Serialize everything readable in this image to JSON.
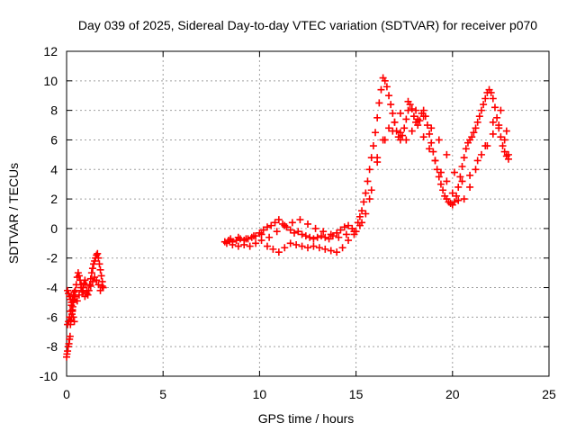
{
  "chart_data": {
    "type": "scatter",
    "title": "Day 039 of 2025, Sidereal Day-to-day VTEC variation (SDTVAR) for receiver p070",
    "xlabel": "GPS time / hours",
    "ylabel": "SDTVAR / TECUs",
    "xlim": [
      0,
      25
    ],
    "ylim": [
      -10,
      12
    ],
    "xticks": [
      "0",
      "5",
      "10",
      "15",
      "20",
      "25"
    ],
    "yticks": [
      "-10",
      "-8",
      "-6",
      "-4",
      "-2",
      "0",
      "2",
      "4",
      "6",
      "8",
      "10",
      "12"
    ],
    "grid": true,
    "marker": "plus",
    "color": "#ff0000",
    "series": [
      {
        "x": [
          0.0,
          0.02,
          0.05,
          0.08,
          0.12,
          0.15,
          0.18,
          0.2,
          0.22,
          0.25,
          0.28,
          0.3,
          0.32,
          0.35,
          0.38,
          0.42,
          0.45,
          0.5,
          0.55,
          0.6,
          0.65,
          0.7,
          0.75,
          0.8,
          0.85,
          0.9,
          0.95,
          1.0,
          1.05,
          1.1,
          1.15,
          1.2,
          1.25,
          1.3,
          1.35,
          1.4,
          1.45,
          1.5,
          1.55,
          1.6,
          1.65,
          1.7,
          1.75,
          1.8,
          1.85,
          1.9,
          0.05,
          0.1,
          0.15,
          0.2,
          0.25,
          0.3,
          0.35,
          0.4,
          0.45,
          0.55,
          0.65,
          0.75,
          0.85,
          0.95,
          1.05,
          1.15,
          1.25,
          1.35,
          1.45,
          1.55,
          1.65,
          1.75,
          1.85,
          0.05,
          0.1,
          0.15,
          0.2,
          0.25,
          0.3,
          0.35,
          0.4
        ],
        "y": [
          -8.7,
          -8.5,
          -8.3,
          -8.0,
          -7.8,
          -7.5,
          -7.3,
          -6.5,
          -6.2,
          -6.0,
          -5.8,
          -5.6,
          -5.3,
          -5.0,
          -4.8,
          -4.5,
          -4.2,
          -3.8,
          -3.3,
          -3.0,
          -3.2,
          -3.5,
          -3.8,
          -4.2,
          -4.0,
          -3.7,
          -3.5,
          -3.8,
          -4.2,
          -4.5,
          -4.2,
          -3.8,
          -3.4,
          -3.0,
          -2.7,
          -2.4,
          -2.2,
          -2.0,
          -1.8,
          -1.7,
          -2.0,
          -2.4,
          -2.8,
          -3.2,
          -3.6,
          -4.0,
          -6.5,
          -6.3,
          -6.0,
          -5.6,
          -5.2,
          -4.8,
          -4.5,
          -4.3,
          -4.6,
          -4.9,
          -4.5,
          -4.0,
          -4.3,
          -4.6,
          -4.4,
          -4.2,
          -3.9,
          -3.6,
          -3.3,
          -3.5,
          -3.8,
          -4.2,
          -3.9,
          -4.2,
          -4.4,
          -4.6,
          -4.8,
          -5.0,
          -5.5,
          -6.0,
          -6.3
        ]
      },
      {
        "x": [
          8.2,
          8.4,
          8.6,
          8.8,
          9.0,
          9.2,
          9.4,
          9.6,
          9.8,
          10.0,
          10.2,
          10.4,
          10.6,
          10.8,
          11.0,
          11.2,
          11.4,
          11.6,
          11.8,
          12.0,
          12.2,
          12.4,
          12.6,
          12.8,
          13.0,
          13.2,
          13.4,
          13.6,
          13.8,
          14.0,
          14.2,
          14.4,
          14.6,
          14.8,
          15.0,
          15.1,
          15.2,
          15.3,
          15.4,
          15.5,
          15.6,
          15.7,
          15.8,
          15.9,
          16.0,
          16.1,
          16.2,
          16.3,
          16.4,
          16.5,
          16.6,
          16.7,
          16.8,
          16.9,
          17.0,
          17.1,
          17.2,
          17.3,
          17.4,
          17.5,
          17.6,
          17.7,
          17.8,
          17.9,
          18.0,
          18.1,
          18.2,
          18.3,
          18.4,
          18.5,
          18.6,
          18.7,
          18.8,
          18.9,
          19.0,
          19.1,
          19.2,
          19.3,
          19.4,
          19.5,
          19.6,
          19.7,
          19.8,
          19.9,
          20.0,
          20.1,
          20.2,
          20.3,
          20.4,
          20.5,
          20.6,
          20.7,
          20.8,
          20.9,
          21.0,
          21.1,
          21.2,
          21.3,
          21.4,
          21.5,
          21.6,
          21.7,
          21.8,
          21.9,
          22.0,
          22.1,
          22.2,
          22.3,
          22.4,
          22.5,
          22.6,
          22.7,
          22.8,
          22.9
        ],
        "y": [
          -0.9,
          -0.8,
          -0.9,
          -0.8,
          -0.7,
          -0.8,
          -0.7,
          -0.6,
          -0.5,
          -0.3,
          -0.1,
          0.1,
          0.2,
          0.4,
          0.6,
          0.3,
          0.1,
          -0.1,
          -0.3,
          -0.2,
          -0.4,
          -0.5,
          -0.6,
          -0.7,
          -0.6,
          -0.5,
          -0.6,
          -0.7,
          -0.5,
          -0.3,
          -0.1,
          0.1,
          0.2,
          0.0,
          -0.2,
          0.4,
          0.8,
          1.2,
          1.8,
          2.4,
          3.2,
          4.0,
          4.8,
          5.6,
          6.5,
          7.5,
          8.5,
          9.4,
          10.2,
          10.0,
          9.6,
          9.0,
          8.4,
          7.8,
          7.2,
          6.6,
          6.2,
          6.0,
          6.3,
          6.8,
          7.4,
          8.0,
          8.4,
          8.1,
          7.6,
          7.2,
          7.0,
          7.3,
          7.8,
          8.0,
          7.6,
          7.0,
          6.4,
          5.8,
          5.2,
          4.6,
          4.0,
          3.5,
          3.0,
          2.6,
          2.2,
          2.0,
          1.8,
          1.7,
          1.6,
          1.8,
          2.2,
          2.8,
          3.5,
          4.2,
          4.8,
          5.4,
          5.8,
          6.0,
          6.2,
          6.5,
          6.8,
          7.2,
          7.6,
          8.0,
          8.4,
          8.8,
          9.2,
          9.4,
          9.2,
          8.8,
          8.2,
          7.5,
          6.8,
          6.2,
          5.6,
          5.2,
          4.9,
          4.7
        ]
      },
      {
        "x": [
          8.3,
          8.6,
          8.9,
          9.2,
          9.5,
          9.8,
          10.1,
          10.4,
          10.7,
          11.0,
          11.3,
          11.6,
          11.9,
          12.2,
          12.5,
          12.8,
          13.1,
          13.4,
          13.7,
          14.0,
          14.3,
          14.6,
          14.9,
          15.2,
          15.5,
          15.8,
          16.1,
          16.4,
          16.7,
          17.0,
          17.3,
          17.6,
          17.9,
          18.2,
          18.5,
          18.8,
          19.1,
          19.4,
          19.7,
          20.0,
          20.3,
          20.6,
          20.9,
          21.2,
          21.5,
          21.8,
          22.1,
          22.4,
          22.7,
          22.9
        ],
        "y": [
          -1.0,
          -1.1,
          -1.2,
          -1.1,
          -1.2,
          -1.0,
          -0.8,
          -1.2,
          -1.4,
          -1.6,
          -1.3,
          -1.0,
          -1.1,
          -1.2,
          -1.3,
          -1.2,
          -1.3,
          -1.4,
          -1.5,
          -1.6,
          -1.3,
          -0.8,
          -0.4,
          0.2,
          1.0,
          2.6,
          4.5,
          6.0,
          6.8,
          7.2,
          6.5,
          6.0,
          6.6,
          7.4,
          6.2,
          5.4,
          4.6,
          3.8,
          3.2,
          2.4,
          1.9,
          2.0,
          2.8,
          4.0,
          5.0,
          5.6,
          6.4,
          7.0,
          6.0,
          5.0
        ]
      },
      {
        "x": [
          8.5,
          8.9,
          9.3,
          9.7,
          10.1,
          10.5,
          10.9,
          11.3,
          11.7,
          12.1,
          12.5,
          12.9,
          13.3,
          13.7,
          14.1,
          14.5,
          14.9,
          15.3,
          15.7,
          16.1,
          16.5,
          16.9,
          17.3,
          17.7,
          18.1,
          18.5,
          18.9,
          19.3,
          19.7,
          20.1,
          20.5,
          20.9,
          21.3,
          21.7,
          22.1,
          22.5,
          22.8
        ],
        "y": [
          -0.7,
          -0.6,
          -0.7,
          -0.5,
          -0.4,
          -0.6,
          -0.2,
          0.2,
          0.4,
          0.6,
          0.3,
          0.0,
          -0.2,
          -0.4,
          -0.6,
          -0.4,
          -0.2,
          0.4,
          2.0,
          4.8,
          6.0,
          6.6,
          7.8,
          8.6,
          8.0,
          7.6,
          6.8,
          6.0,
          5.0,
          3.8,
          3.2,
          3.6,
          4.6,
          5.6,
          7.2,
          8.0,
          6.6
        ]
      }
    ]
  }
}
